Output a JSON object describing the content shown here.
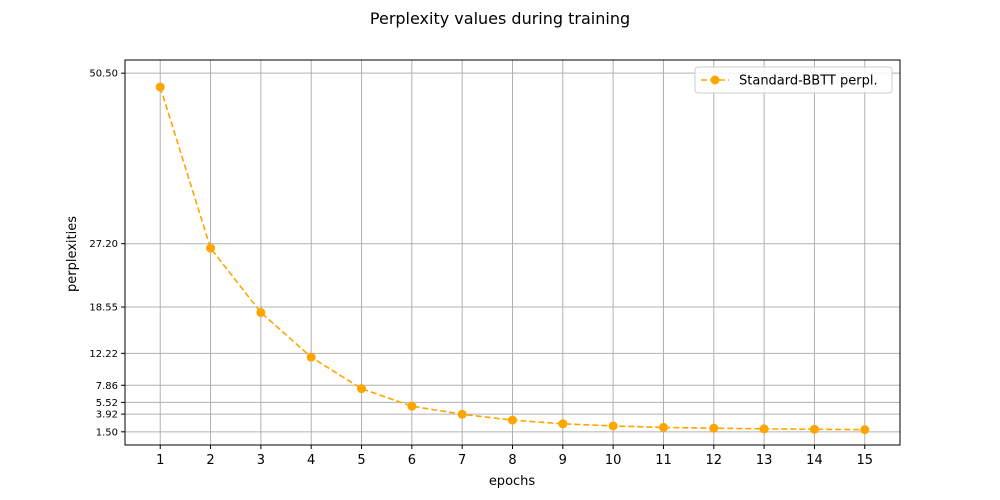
{
  "chart_data": {
    "type": "line",
    "title": "Perplexity values during training",
    "xlabel": "epochs",
    "ylabel": "perplexities",
    "x": [
      1,
      2,
      3,
      4,
      5,
      6,
      7,
      8,
      9,
      10,
      11,
      12,
      13,
      14,
      15
    ],
    "xticks": [
      "1",
      "2",
      "3",
      "4",
      "5",
      "6",
      "7",
      "8",
      "9",
      "10",
      "11",
      "12",
      "13",
      "14",
      "15"
    ],
    "yticks": [
      {
        "value": 1.5,
        "label": "1.50"
      },
      {
        "value": 3.92,
        "label": "3.92"
      },
      {
        "value": 5.52,
        "label": "5.52"
      },
      {
        "value": 7.86,
        "label": "7.86"
      },
      {
        "value": 12.22,
        "label": "12.22"
      },
      {
        "value": 18.55,
        "label": "18.55"
      },
      {
        "value": 27.2,
        "label": "27.20"
      },
      {
        "value": 50.5,
        "label": "50.50"
      }
    ],
    "xlim": [
      0.3,
      15.7
    ],
    "ylim": [
      -0.3,
      52.3
    ],
    "grid": true,
    "legend": "top-right",
    "series": [
      {
        "name": "Standard-BBTT perpl.",
        "color": "#ffa500",
        "linestyle": "dashed",
        "marker": "circle",
        "values": [
          48.6,
          26.6,
          17.8,
          11.7,
          7.4,
          5.0,
          3.9,
          3.1,
          2.6,
          2.3,
          2.1,
          2.0,
          1.9,
          1.85,
          1.8
        ]
      }
    ]
  }
}
